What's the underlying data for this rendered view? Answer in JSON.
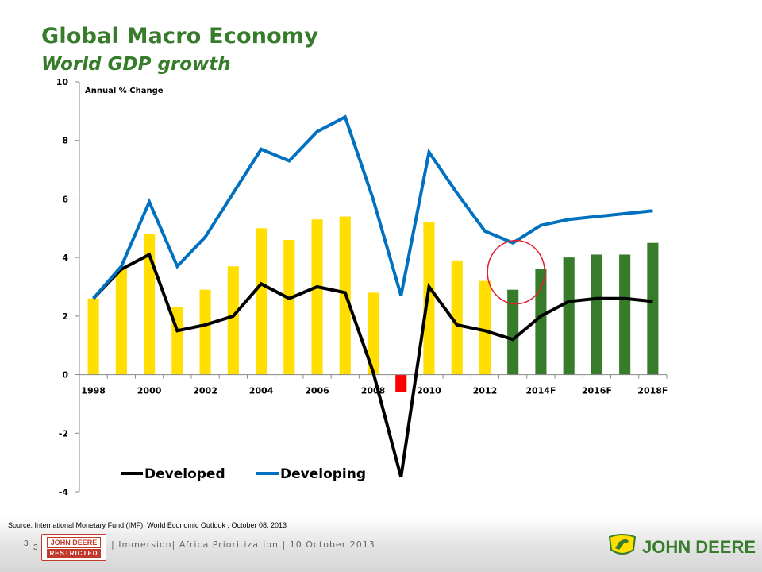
{
  "header": {
    "title": "Global Macro Economy",
    "subtitle": "World GDP growth"
  },
  "chart_data": {
    "type": "bar+line",
    "unit_label": "Annual % Change",
    "ylim": [
      -4,
      10
    ],
    "yticks": [
      -4,
      -2,
      0,
      2,
      4,
      6,
      8,
      10
    ],
    "categories": [
      "1998",
      "1999",
      "2000",
      "2001",
      "2002",
      "2003",
      "2004",
      "2005",
      "2006",
      "2007",
      "2008",
      "2009",
      "2010",
      "2011",
      "2012",
      "2013",
      "2014F",
      "2015F",
      "2016F",
      "2017F",
      "2018F"
    ],
    "xtick_labels": [
      "1998",
      "2000",
      "2002",
      "2004",
      "2006",
      "2008",
      "2010",
      "2012",
      "2014F",
      "2016F",
      "2018F"
    ],
    "bars": [
      {
        "value": 2.6,
        "color": "#ffde00"
      },
      {
        "value": 3.6,
        "color": "#ffde00"
      },
      {
        "value": 4.8,
        "color": "#ffde00"
      },
      {
        "value": 2.3,
        "color": "#ffde00"
      },
      {
        "value": 2.9,
        "color": "#ffde00"
      },
      {
        "value": 3.7,
        "color": "#ffde00"
      },
      {
        "value": 5.0,
        "color": "#ffde00"
      },
      {
        "value": 4.6,
        "color": "#ffde00"
      },
      {
        "value": 5.3,
        "color": "#ffde00"
      },
      {
        "value": 5.4,
        "color": "#ffde00"
      },
      {
        "value": 2.8,
        "color": "#ffde00"
      },
      {
        "value": -0.6,
        "color": "#ff0000"
      },
      {
        "value": 5.2,
        "color": "#ffde00"
      },
      {
        "value": 3.9,
        "color": "#ffde00"
      },
      {
        "value": 3.2,
        "color": "#ffde00"
      },
      {
        "value": 2.9,
        "color": "#367c2b"
      },
      {
        "value": 3.6,
        "color": "#367c2b"
      },
      {
        "value": 4.0,
        "color": "#367c2b"
      },
      {
        "value": 4.1,
        "color": "#367c2b"
      },
      {
        "value": 4.1,
        "color": "#367c2b"
      },
      {
        "value": 4.5,
        "color": "#367c2b"
      }
    ],
    "series": [
      {
        "name": "Developed",
        "color": "#000000",
        "values": [
          2.6,
          3.6,
          4.1,
          1.5,
          1.7,
          2.0,
          3.1,
          2.6,
          3.0,
          2.8,
          0.1,
          -3.5,
          3.0,
          1.7,
          1.5,
          1.2,
          2.0,
          2.5,
          2.6,
          2.6,
          2.5
        ]
      },
      {
        "name": "Developing",
        "color": "#0070c0",
        "values": [
          2.6,
          3.7,
          5.9,
          3.7,
          4.7,
          6.2,
          7.7,
          7.3,
          8.3,
          8.8,
          6.0,
          2.7,
          7.6,
          6.2,
          4.9,
          4.5,
          5.1,
          5.3,
          5.4,
          5.5,
          5.6
        ]
      }
    ],
    "highlight": {
      "category": "2013",
      "value": 3.5,
      "color": "#e11d2e"
    },
    "grid": false,
    "legend_position": "bottom-left"
  },
  "footer": {
    "source": "Source:  International Monetary Fund (IMF), World Economic Outlook , October 08, 2013",
    "page_number": "3",
    "page_number_overlay": "3",
    "badge_top": "JOHN DEERE",
    "badge_bottom": "RESTRICTED",
    "text": "| Immersion| Africa Prioritization | 10 October 2013",
    "logo_text": "JOHN DEERE"
  },
  "colors": {
    "brand_green": "#367c2b",
    "brand_yellow": "#ffde00",
    "negative_red": "#ff0000",
    "developing_blue": "#0070c0",
    "developed_black": "#000000"
  }
}
